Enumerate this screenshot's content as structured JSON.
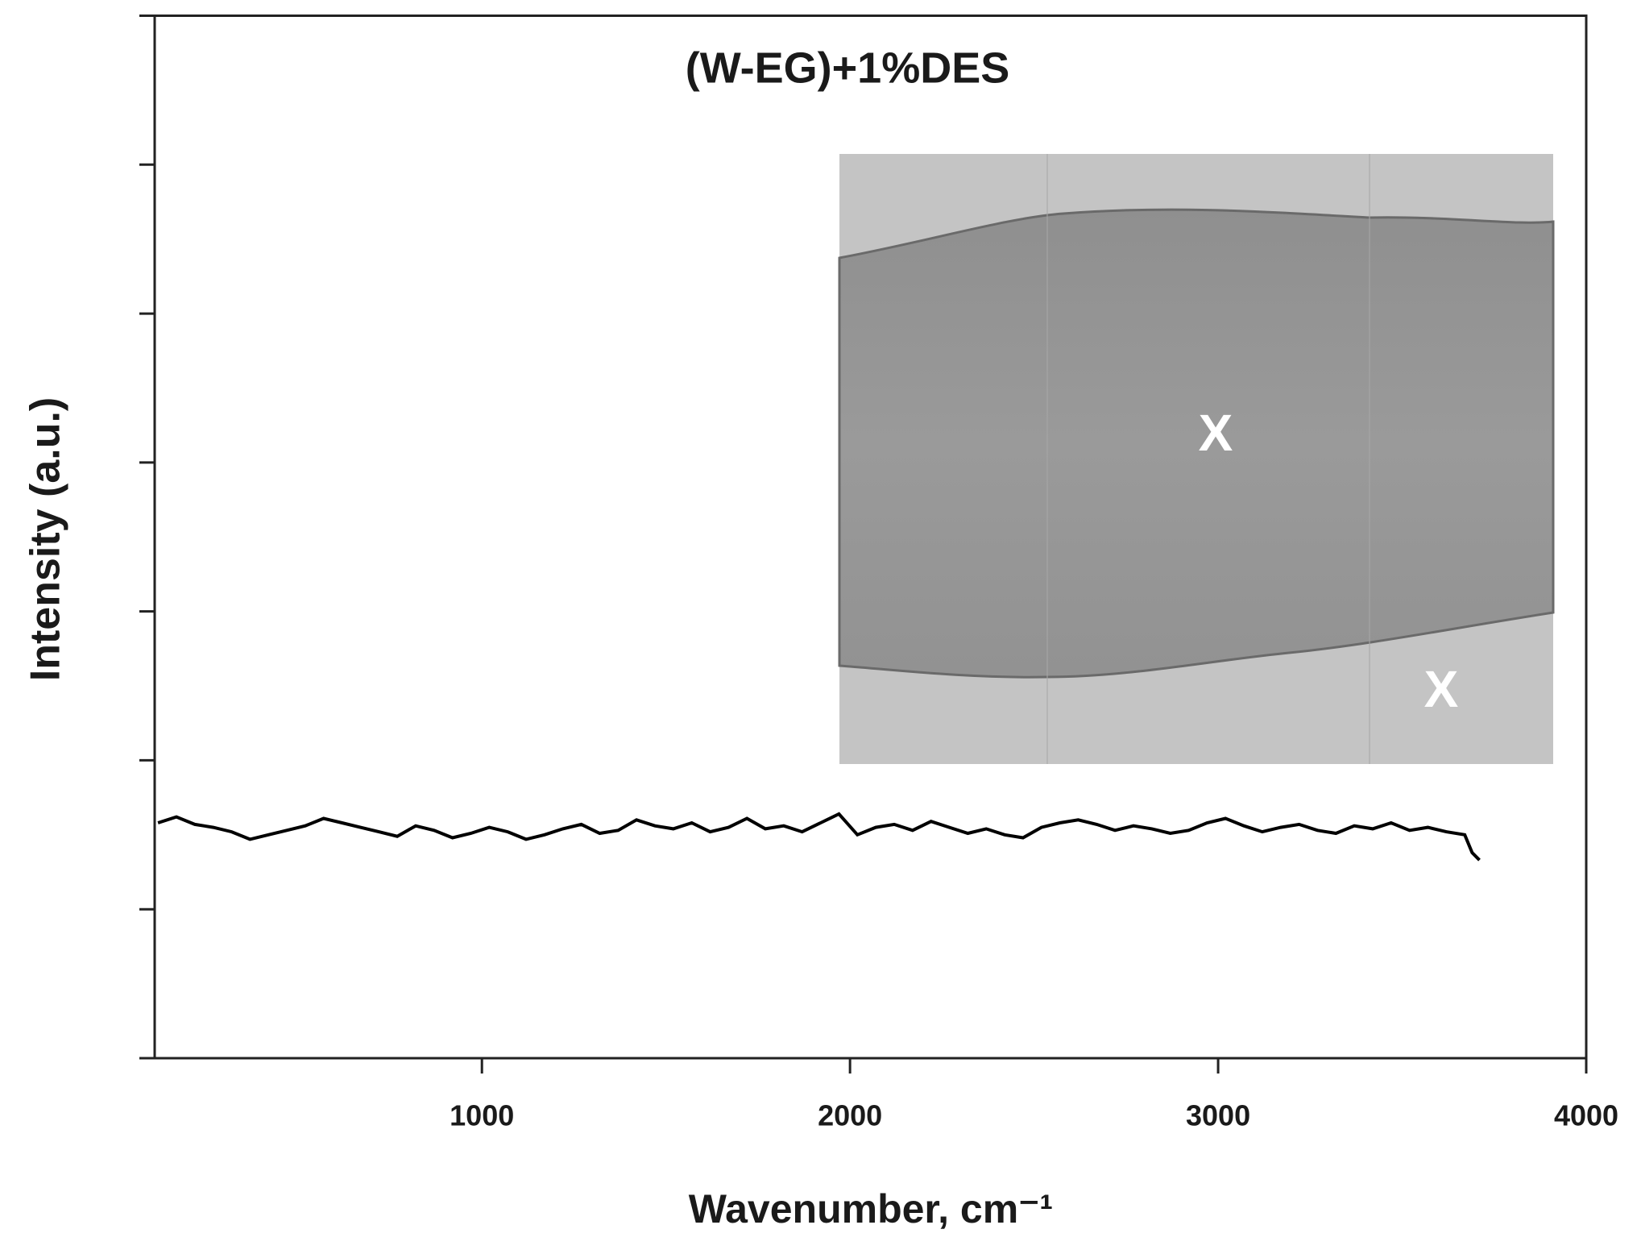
{
  "chart_data": {
    "type": "line",
    "title": "(W-EG)+1%DES",
    "xlabel": "Wavenumber, cm⁻¹",
    "ylabel": "Intensity (a.u.)",
    "inset_labels": [
      "X",
      "X"
    ],
    "color": "#000000",
    "xlim": [
      111,
      4000
    ],
    "xticks": [
      1000,
      2000,
      3000,
      4000
    ],
    "ylim": [
      0,
      7
    ],
    "yticks": [
      0,
      1,
      2,
      3,
      4,
      5,
      6,
      7
    ],
    "x": [
      120,
      170,
      220,
      270,
      320,
      370,
      420,
      470,
      520,
      570,
      620,
      670,
      720,
      770,
      820,
      870,
      920,
      970,
      1020,
      1070,
      1120,
      1170,
      1220,
      1270,
      1320,
      1370,
      1420,
      1470,
      1520,
      1570,
      1620,
      1670,
      1720,
      1770,
      1820,
      1870,
      1920,
      1970,
      2020,
      2070,
      2120,
      2170,
      2220,
      2270,
      2320,
      2370,
      2420,
      2470,
      2520,
      2570,
      2620,
      2670,
      2720,
      2770,
      2820,
      2870,
      2920,
      2970,
      3020,
      3070,
      3120,
      3170,
      3220,
      3270,
      3320,
      3370,
      3420,
      3470,
      3520,
      3570,
      3620,
      3670,
      3690,
      3710
    ],
    "values": [
      1.58,
      1.62,
      1.57,
      1.55,
      1.52,
      1.47,
      1.5,
      1.53,
      1.56,
      1.61,
      1.58,
      1.55,
      1.52,
      1.49,
      1.56,
      1.53,
      1.48,
      1.51,
      1.55,
      1.52,
      1.47,
      1.5,
      1.54,
      1.57,
      1.51,
      1.53,
      1.6,
      1.56,
      1.54,
      1.58,
      1.52,
      1.55,
      1.61,
      1.54,
      1.56,
      1.52,
      1.58,
      1.64,
      1.5,
      1.55,
      1.57,
      1.53,
      1.59,
      1.55,
      1.51,
      1.54,
      1.5,
      1.48,
      1.55,
      1.58,
      1.6,
      1.57,
      1.53,
      1.56,
      1.54,
      1.51,
      1.53,
      1.58,
      1.61,
      1.56,
      1.52,
      1.55,
      1.57,
      1.53,
      1.51,
      1.56,
      1.54,
      1.58,
      1.53,
      1.55,
      1.52,
      1.5,
      1.38,
      1.33
    ]
  }
}
